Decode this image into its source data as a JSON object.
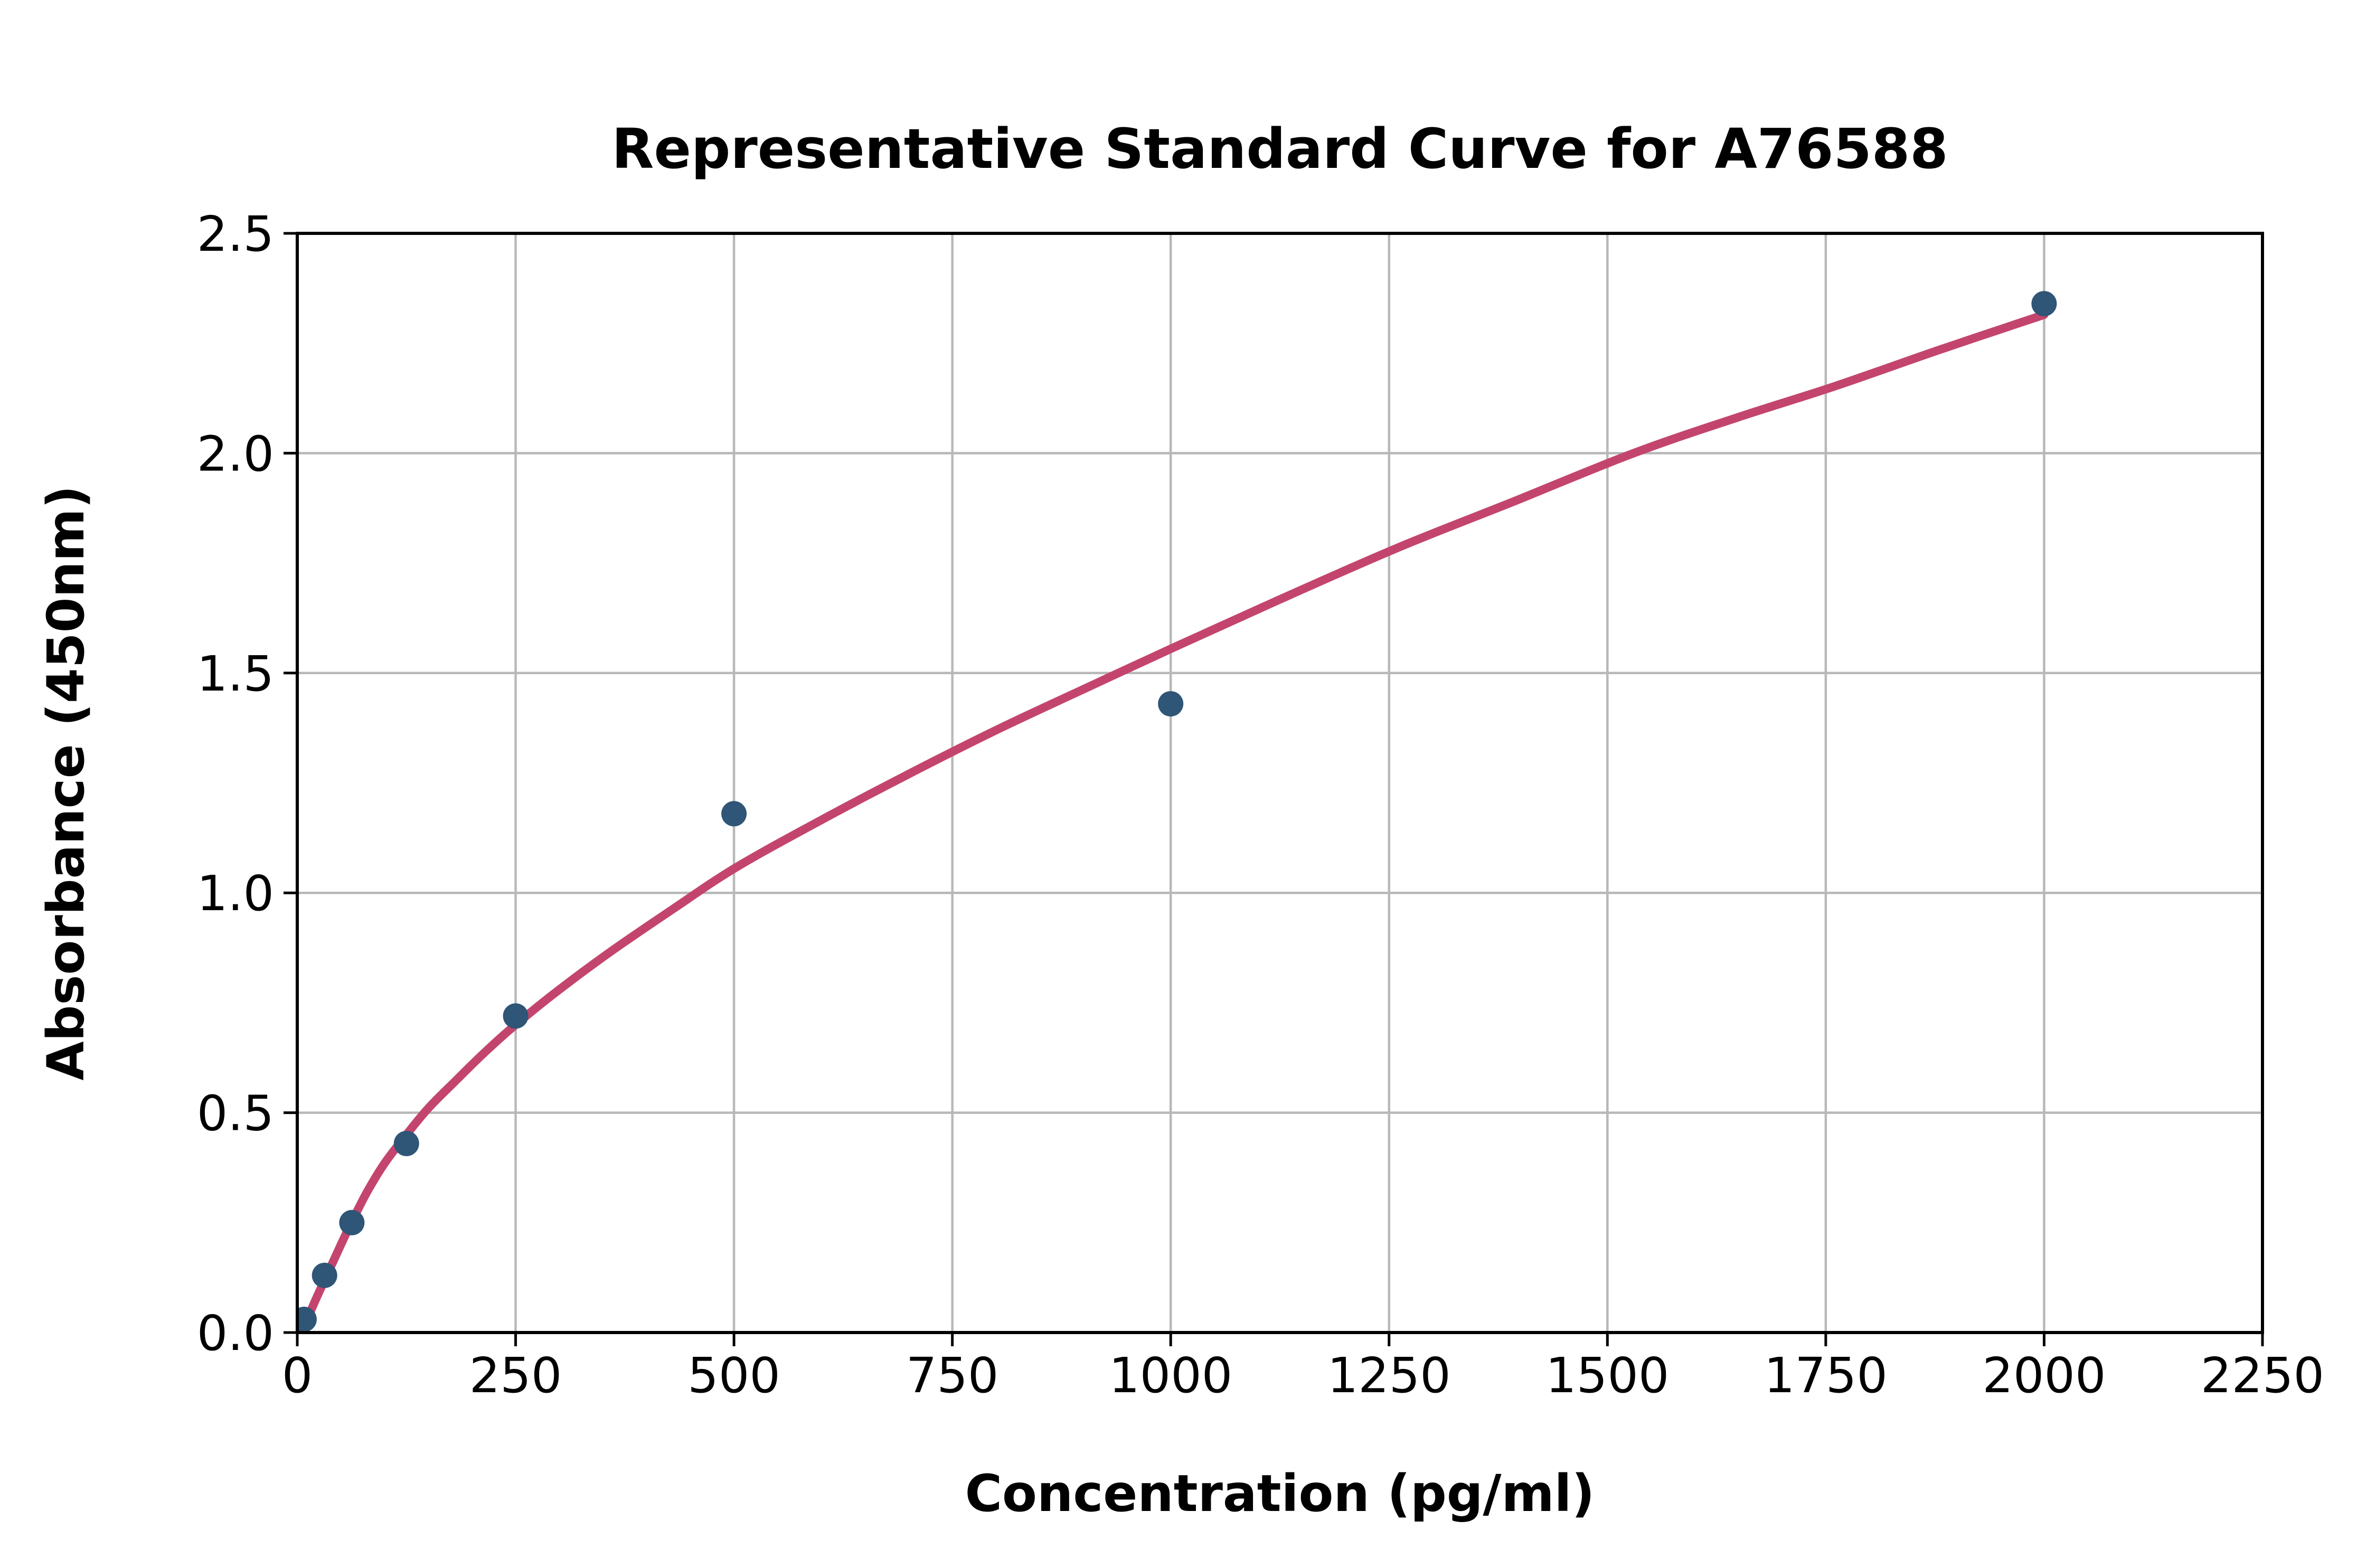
{
  "figure": {
    "title": "Representative Standard Curve for A76588",
    "x_axis_label": "Concentration (pg/ml)",
    "y_axis_label": "Absorbance (450nm)"
  },
  "chart_data": {
    "type": "scatter",
    "title": "Representative Standard Curve for A76588",
    "xlabel": "Concentration (pg/ml)",
    "ylabel": "Absorbance (450nm)",
    "xlim": [
      0,
      2250
    ],
    "ylim": [
      0,
      2.5
    ],
    "grid": true,
    "legend": "none",
    "x_ticks": [
      {
        "value": 0,
        "label": "0"
      },
      {
        "value": 250,
        "label": "250"
      },
      {
        "value": 500,
        "label": "500"
      },
      {
        "value": 750,
        "label": "750"
      },
      {
        "value": 1000,
        "label": "1000"
      },
      {
        "value": 1250,
        "label": "1250"
      },
      {
        "value": 1500,
        "label": "1500"
      },
      {
        "value": 1750,
        "label": "1750"
      },
      {
        "value": 2000,
        "label": "2000"
      },
      {
        "value": 2250,
        "label": "2250"
      }
    ],
    "y_ticks": [
      {
        "value": 0.0,
        "label": "0.0"
      },
      {
        "value": 0.5,
        "label": "0.5"
      },
      {
        "value": 1.0,
        "label": "1.0"
      },
      {
        "value": 1.5,
        "label": "1.5"
      },
      {
        "value": 2.0,
        "label": "2.0"
      },
      {
        "value": 2.5,
        "label": "2.5"
      }
    ],
    "series": [
      {
        "name": "standard-points",
        "type": "scatter",
        "points": [
          {
            "x": 7.8,
            "y": 0.03
          },
          {
            "x": 31.25,
            "y": 0.13
          },
          {
            "x": 62.5,
            "y": 0.25
          },
          {
            "x": 125,
            "y": 0.43
          },
          {
            "x": 250,
            "y": 0.72
          },
          {
            "x": 500,
            "y": 1.18
          },
          {
            "x": 1000,
            "y": 1.43
          },
          {
            "x": 2000,
            "y": 2.34
          }
        ]
      },
      {
        "name": "fitted-curve",
        "type": "line",
        "points_xy": [
          [
            5,
            0.0
          ],
          [
            20,
            0.07
          ],
          [
            35,
            0.135
          ],
          [
            50,
            0.2
          ],
          [
            62,
            0.25
          ],
          [
            80,
            0.32
          ],
          [
            100,
            0.385
          ],
          [
            125,
            0.45
          ],
          [
            150,
            0.51
          ],
          [
            180,
            0.57
          ],
          [
            215,
            0.638
          ],
          [
            250,
            0.7
          ],
          [
            300,
            0.78
          ],
          [
            360,
            0.868
          ],
          [
            430,
            0.963
          ],
          [
            500,
            1.055
          ],
          [
            590,
            1.155
          ],
          [
            690,
            1.26
          ],
          [
            800,
            1.37
          ],
          [
            900,
            1.463
          ],
          [
            1000,
            1.555
          ],
          [
            1120,
            1.663
          ],
          [
            1260,
            1.785
          ],
          [
            1390,
            1.888
          ],
          [
            1530,
            2.0
          ],
          [
            1650,
            2.082
          ],
          [
            1760,
            2.152
          ],
          [
            1880,
            2.235
          ],
          [
            2000,
            2.315
          ]
        ]
      }
    ],
    "colors": {
      "point_fill": "#2f5577",
      "curve_stroke": "#c3456d",
      "grid_line": "#b8b8b8",
      "axis_line": "#000000",
      "text": "#000000",
      "background": "#ffffff"
    }
  }
}
